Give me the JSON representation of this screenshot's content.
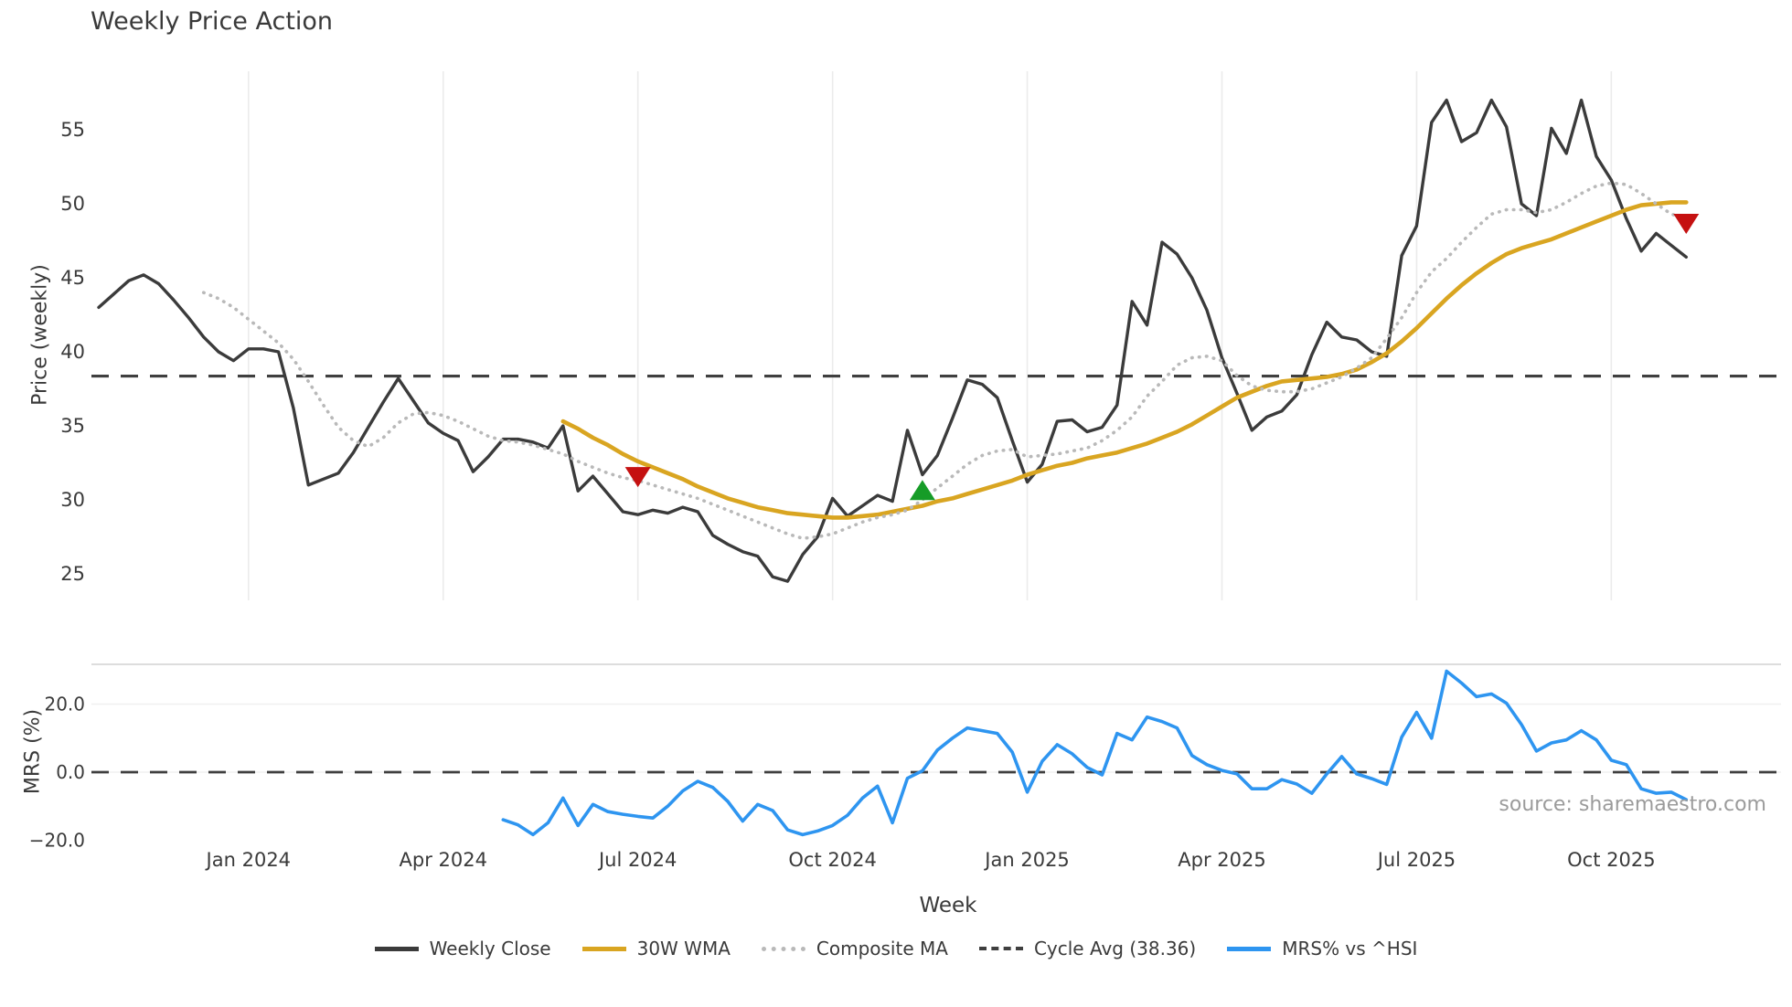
{
  "chart_data": {
    "type": "line",
    "title": "Weekly Price Action",
    "xlabel": "Week",
    "source": "source: sharemaestro.com",
    "panels": [
      {
        "ylabel": "Price (weekly)",
        "yticks": [
          {
            "label": "55",
            "value": 55
          },
          {
            "label": "50",
            "value": 50
          },
          {
            "label": "45",
            "value": 45
          },
          {
            "label": "40",
            "value": 40
          },
          {
            "label": "35",
            "value": 35
          },
          {
            "label": "30",
            "value": 30
          },
          {
            "label": "25",
            "value": 25
          }
        ],
        "ylim": [
          23.5,
          58.5
        ]
      },
      {
        "ylabel": "MRS (%)",
        "yticks": [
          {
            "label": "20.0",
            "value": 20
          },
          {
            "label": "0.0",
            "value": 0
          },
          {
            "label": "−20.0",
            "value": -20
          }
        ],
        "ylim": [
          -24,
          32
        ]
      }
    ],
    "x_ticks": {
      "weeks": [
        10,
        23,
        36,
        49,
        62,
        75,
        88,
        101
      ],
      "labels": [
        "Jan 2024",
        "Apr 2024",
        "Jul 2024",
        "Oct 2024",
        "Jan 2025",
        "Apr 2025",
        "Jul 2025",
        "Oct 2025"
      ]
    },
    "cycle_avg": 38.36,
    "mrs_zero": 0,
    "series": [
      {
        "name": "Weekly Close",
        "panel": 0,
        "color": "#3b3b3b",
        "style": "solid",
        "width": 3.4,
        "start_week": 0,
        "values": [
          43.0,
          43.9,
          44.8,
          45.2,
          44.6,
          43.5,
          42.3,
          41.0,
          40.0,
          39.4,
          40.2,
          40.2,
          40.0,
          36.2,
          31.0,
          31.4,
          31.8,
          33.2,
          34.9,
          36.6,
          38.2,
          36.7,
          35.2,
          34.5,
          34.0,
          31.9,
          32.9,
          34.1,
          34.1,
          33.9,
          33.5,
          35.0,
          30.6,
          31.6,
          30.4,
          29.2,
          29.0,
          29.3,
          29.1,
          29.5,
          29.2,
          27.6,
          27.0,
          26.5,
          26.2,
          24.8,
          24.5,
          26.3,
          27.5,
          30.1,
          28.9,
          29.6,
          30.3,
          29.9,
          34.7,
          31.7,
          33.0,
          35.5,
          38.1,
          37.8,
          36.9,
          34.0,
          31.2,
          32.4,
          35.3,
          35.4,
          34.6,
          34.9,
          36.4,
          43.4,
          41.8,
          47.4,
          46.6,
          45.0,
          42.8,
          39.6,
          37.2,
          34.7,
          35.6,
          36.0,
          37.1,
          39.8,
          42.0,
          41.0,
          40.8,
          40.0,
          39.7,
          46.5,
          48.5,
          55.5,
          57.0,
          54.2,
          54.8,
          57.0,
          55.2,
          50.0,
          49.2,
          55.1,
          53.4,
          57.0,
          53.2,
          51.6,
          49.0,
          46.8,
          48.0,
          47.2,
          46.4
        ]
      },
      {
        "name": "30W WMA",
        "panel": 0,
        "color": "#d9a521",
        "style": "solid",
        "width": 4.6,
        "start_week": 31,
        "values": [
          35.3,
          34.8,
          34.2,
          33.7,
          33.1,
          32.6,
          32.2,
          31.8,
          31.4,
          30.9,
          30.5,
          30.1,
          29.8,
          29.5,
          29.3,
          29.1,
          29.0,
          28.9,
          28.8,
          28.8,
          28.9,
          29.0,
          29.2,
          29.4,
          29.6,
          29.9,
          30.1,
          30.4,
          30.7,
          31.0,
          31.3,
          31.7,
          32.0,
          32.3,
          32.5,
          32.8,
          33.0,
          33.2,
          33.5,
          33.8,
          34.2,
          34.6,
          35.1,
          35.7,
          36.3,
          36.9,
          37.3,
          37.7,
          38.0,
          38.1,
          38.2,
          38.3,
          38.5,
          38.8,
          39.3,
          39.9,
          40.7,
          41.6,
          42.6,
          43.6,
          44.5,
          45.3,
          46.0,
          46.6,
          47.0,
          47.3,
          47.6,
          48.0,
          48.4,
          48.8,
          49.2,
          49.6,
          49.9,
          50.0,
          50.1,
          50.1
        ]
      },
      {
        "name": "Composite MA",
        "panel": 0,
        "color": "#b9b9b9",
        "style": "dotted",
        "width": 3.6,
        "start_week": 7,
        "values": [
          44.0,
          43.6,
          43.0,
          42.2,
          41.4,
          40.6,
          39.5,
          38.0,
          36.4,
          34.9,
          34.0,
          33.6,
          34.2,
          35.2,
          35.8,
          35.9,
          35.7,
          35.3,
          34.8,
          34.3,
          34.0,
          33.9,
          33.7,
          33.4,
          33.1,
          32.6,
          32.2,
          31.8,
          31.5,
          31.3,
          31.0,
          30.7,
          30.4,
          30.1,
          29.7,
          29.3,
          28.9,
          28.5,
          28.1,
          27.7,
          27.4,
          27.5,
          27.7,
          28.1,
          28.5,
          28.8,
          29.0,
          29.3,
          30.0,
          30.8,
          31.6,
          32.4,
          33.0,
          33.3,
          33.4,
          32.9,
          33.0,
          33.1,
          33.3,
          33.5,
          34.0,
          34.7,
          35.6,
          37.0,
          38.0,
          39.1,
          39.6,
          39.7,
          39.4,
          38.4,
          37.7,
          37.4,
          37.3,
          37.3,
          37.5,
          37.9,
          38.3,
          38.9,
          39.6,
          40.9,
          42.3,
          44.0,
          45.4,
          46.3,
          47.4,
          48.4,
          49.3,
          49.6,
          49.6,
          49.4,
          49.6,
          50.1,
          50.7,
          51.2,
          51.4,
          51.3,
          50.7,
          50.0,
          49.3,
          49.0
        ]
      },
      {
        "name": "MRS% vs ^HSI",
        "panel": 1,
        "color": "#2e95f0",
        "style": "solid",
        "width": 3.6,
        "start_week": 27,
        "values": [
          -14.0,
          -15.5,
          -18.4,
          -14.9,
          -7.6,
          -15.7,
          -9.5,
          -11.6,
          -12.4,
          -13.0,
          -13.5,
          -10.0,
          -5.5,
          -2.7,
          -4.5,
          -8.6,
          -14.4,
          -9.5,
          -11.3,
          -17.0,
          -18.4,
          -17.3,
          -15.7,
          -12.7,
          -7.6,
          -4.1,
          -14.9,
          -1.8,
          0.4,
          6.5,
          10.0,
          13.0,
          12.2,
          11.4,
          5.9,
          -5.9,
          3.2,
          8.1,
          5.4,
          1.4,
          -0.8,
          11.4,
          9.5,
          16.2,
          14.9,
          13.0,
          4.9,
          2.2,
          0.5,
          -0.5,
          -4.9,
          -4.9,
          -2.2,
          -3.5,
          -6.2,
          -0.5,
          4.6,
          -0.5,
          -1.9,
          -3.6,
          10.3,
          17.6,
          10.0,
          29.7,
          26.2,
          22.2,
          23.0,
          20.3,
          14.0,
          6.2,
          8.6,
          9.5,
          12.2,
          9.5,
          3.5,
          2.2,
          -4.9,
          -6.2,
          -5.9,
          -8.1
        ]
      }
    ],
    "markers": [
      {
        "shape": "triangle-down",
        "week": 36,
        "value": 31.6,
        "color": "#c51111"
      },
      {
        "shape": "triangle-up",
        "week": 55,
        "value": 30.6,
        "color": "#169c27"
      },
      {
        "shape": "triangle-down",
        "week": 106,
        "value": 48.7,
        "color": "#c51111"
      }
    ],
    "legend": [
      {
        "label": "Weekly Close",
        "color": "#3b3b3b",
        "style": "solid"
      },
      {
        "label": "30W WMA",
        "color": "#d9a521",
        "style": "solid"
      },
      {
        "label": "Composite MA",
        "color": "#b9b9b9",
        "style": "dotted"
      },
      {
        "label": "Cycle Avg (38.36)",
        "color": "#3f3f3f",
        "style": "dashed"
      },
      {
        "label": "MRS% vs ^HSI",
        "color": "#2e95f0",
        "style": "solid"
      }
    ],
    "colors": {
      "grid": "#ebebeb",
      "panel_border": "#d2d2d2",
      "dash": "#3f3f3f",
      "text": "#3a3a3a",
      "source": "#9b9b9b"
    }
  }
}
